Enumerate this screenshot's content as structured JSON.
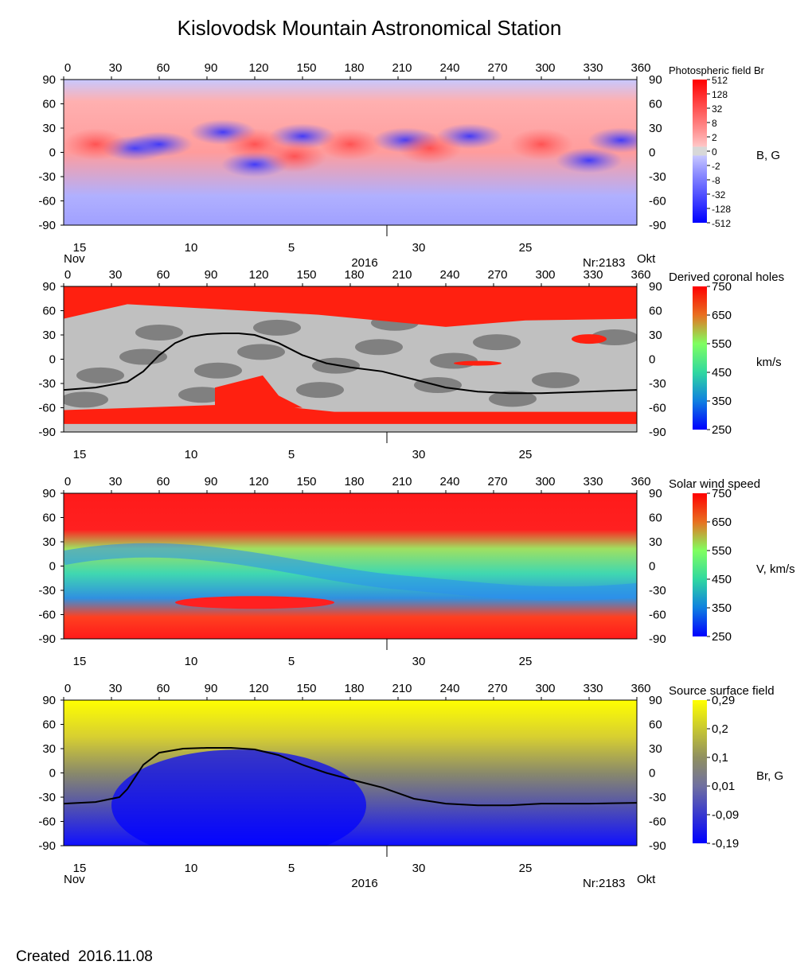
{
  "title": "Kislovodsk Mountain Astronomical Station",
  "created": "Created  2016.11.08",
  "colors": {
    "photo_pos": "#ff2020",
    "photo_neg": "#2020ff",
    "photo_zero": "#d8d8d8",
    "ch_red": "#ff2010",
    "ch_gray_light": "#c0c0c0",
    "ch_gray_dark": "#808080",
    "wind_fast": "#ff1a1a",
    "wind_mid": "#40e8a0",
    "wind_slow": "#1040ff",
    "ss_pos": "#ffff00",
    "ss_mid": "#808080",
    "ss_neg": "#0000ff",
    "neutral_line": "#000000"
  },
  "axes": {
    "lon_ticks": [
      "0",
      "30",
      "60",
      "90",
      "120",
      "150",
      "180",
      "210",
      "240",
      "270",
      "300",
      "330",
      "360"
    ],
    "lat_ticks": [
      "90",
      "60",
      "30",
      "0",
      "-30",
      "-60",
      "-90"
    ],
    "date_ticks": [
      "15",
      "10",
      "5",
      "30",
      "25"
    ],
    "month_left": "Nov",
    "month_right": "Okt",
    "year": "2016",
    "rotation": "Nr:2183"
  },
  "panels": [
    {
      "id": "photo",
      "colorbar_title": "Photospheric field Br",
      "unit": "B, G",
      "colorbar_ticks": [
        "512",
        "128",
        "32",
        "8",
        "2",
        "0",
        "-2",
        "-8",
        "-32",
        "-128",
        "-512"
      ],
      "show_bottom_labels": true,
      "show_top_labels": true
    },
    {
      "id": "coronal",
      "colorbar_title": "Derived coronal holes",
      "unit": "km/s",
      "colorbar_ticks": [
        "750",
        "650",
        "550",
        "450",
        "350",
        "250"
      ],
      "show_bottom_labels": false,
      "show_top_labels": true
    },
    {
      "id": "wind",
      "colorbar_title": "Solar wind speed",
      "unit": "V, km/s",
      "colorbar_ticks": [
        "750",
        "650",
        "550",
        "450",
        "350",
        "250"
      ],
      "show_bottom_labels": false,
      "show_top_labels": true
    },
    {
      "id": "source",
      "colorbar_title": "Source surface field",
      "unit": "Br, G",
      "colorbar_ticks": [
        "0,29",
        "0,2",
        "0,1",
        "0,01",
        "-0,09",
        "-0,19"
      ],
      "show_bottom_labels": true,
      "show_top_labels": true
    }
  ],
  "chart_data": [
    {
      "type": "heatmap",
      "title": "Photospheric field Br",
      "xlabel": "",
      "ylabel": "",
      "xlim": [
        0,
        360
      ],
      "ylim": [
        -90,
        90
      ],
      "colorbar_label": "B, G",
      "colorbar_values": [
        512,
        128,
        32,
        8,
        2,
        0,
        -2,
        -8,
        -32,
        -128,
        -512
      ],
      "negative_regions": [
        {
          "lon": 45,
          "lat": 5
        },
        {
          "lon": 60,
          "lat": 10
        },
        {
          "lon": 100,
          "lat": 25
        },
        {
          "lon": 120,
          "lat": -15
        },
        {
          "lon": 150,
          "lat": 20
        },
        {
          "lon": 215,
          "lat": 15
        },
        {
          "lon": 255,
          "lat": 20
        },
        {
          "lon": 330,
          "lat": -10
        },
        {
          "lon": 350,
          "lat": 15
        }
      ],
      "positive_regions": [
        {
          "lon": 20,
          "lat": 10
        },
        {
          "lon": 120,
          "lat": 10
        },
        {
          "lon": 145,
          "lat": -5
        },
        {
          "lon": 180,
          "lat": 10
        },
        {
          "lon": 230,
          "lat": 5
        },
        {
          "lon": 300,
          "lat": 10
        }
      ]
    },
    {
      "type": "heatmap",
      "title": "Derived coronal holes",
      "xlim": [
        0,
        360
      ],
      "ylim": [
        -90,
        90
      ],
      "colorbar_label": "km/s",
      "colorbar_range": [
        250,
        750
      ],
      "neutral_line": {
        "lon": [
          0,
          20,
          40,
          50,
          60,
          70,
          80,
          90,
          100,
          110,
          120,
          135,
          150,
          165,
          180,
          200,
          220,
          240,
          260,
          280,
          300,
          330,
          360
        ],
        "lat": [
          -38,
          -35,
          -28,
          -15,
          5,
          20,
          28,
          31,
          32,
          32,
          30,
          20,
          5,
          -5,
          -10,
          -15,
          -25,
          -35,
          -40,
          -42,
          -42,
          -40,
          -38
        ]
      },
      "north_polar_hole_boundary_lat": 55,
      "south_polar_hole_boundary_lat": -65
    },
    {
      "type": "heatmap",
      "title": "Solar wind speed",
      "xlim": [
        0,
        360
      ],
      "ylim": [
        -90,
        90
      ],
      "colorbar_label": "V, km/s",
      "colorbar_range": [
        250,
        750
      ]
    },
    {
      "type": "heatmap",
      "title": "Source surface field",
      "xlim": [
        0,
        360
      ],
      "ylim": [
        -90,
        90
      ],
      "colorbar_label": "Br, G",
      "colorbar_range": [
        -0.19,
        0.29
      ],
      "neutral_line": {
        "lon": [
          0,
          20,
          35,
          40,
          45,
          50,
          60,
          75,
          90,
          105,
          120,
          135,
          150,
          165,
          180,
          200,
          220,
          240,
          260,
          280,
          300,
          330,
          360
        ],
        "lat": [
          -38,
          -36,
          -30,
          -20,
          -5,
          10,
          25,
          30,
          31,
          31,
          29,
          22,
          10,
          0,
          -8,
          -18,
          -32,
          -38,
          -40,
          -40,
          -38,
          -38,
          -37
        ]
      }
    }
  ]
}
